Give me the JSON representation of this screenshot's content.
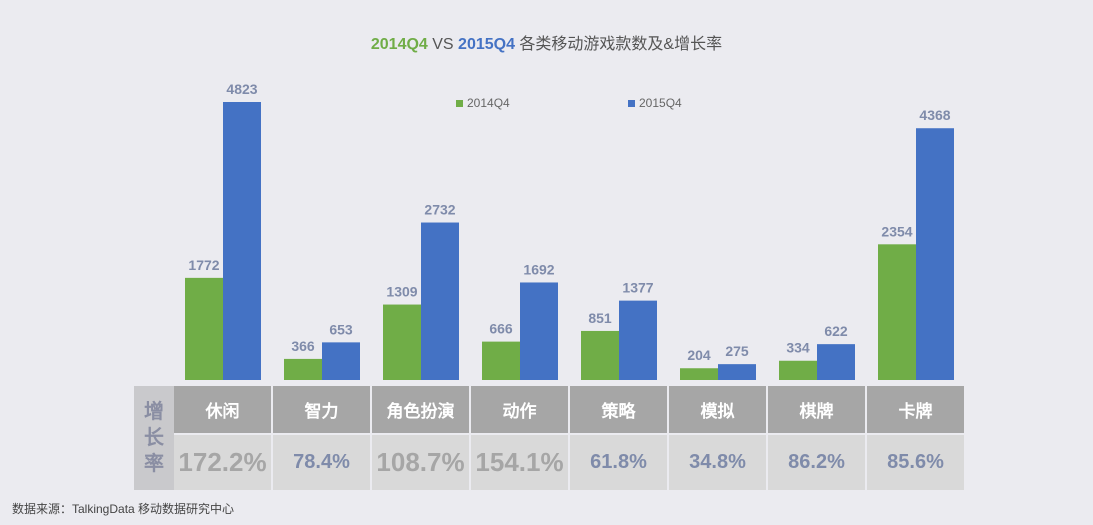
{
  "title": {
    "part_a": "2014Q4",
    "part_vs": " VS ",
    "part_b": "2015Q4",
    "part_rest": " 各类移动游戏款数及&增长率"
  },
  "legend": {
    "a": "2014Q4",
    "b": "2015Q4"
  },
  "colors": {
    "series_a": "#70ad47",
    "series_b": "#4472c4",
    "value_label": "#7f8baa"
  },
  "table": {
    "row_label": [
      "增",
      "长",
      "率"
    ],
    "categories": [
      "休闲",
      "智力",
      "角色扮演",
      "动作",
      "策略",
      "模拟",
      "棋牌",
      "卡牌"
    ],
    "rates": [
      "172.2%",
      "78.4%",
      "108.7%",
      "154.1%",
      "61.8%",
      "34.8%",
      "86.2%",
      "85.6%"
    ],
    "big_rates": [
      true,
      false,
      true,
      true,
      false,
      false,
      false,
      false
    ]
  },
  "source": "数据来源：TalkingData   移动数据研究中心",
  "chart_data": {
    "type": "bar",
    "title": "2014Q4 VS 2015Q4 各类移动游戏款数及&增长率",
    "categories": [
      "休闲",
      "智力",
      "角色扮演",
      "动作",
      "策略",
      "模拟",
      "棋牌",
      "卡牌"
    ],
    "series": [
      {
        "name": "2014Q4",
        "values": [
          1772,
          366,
          1309,
          666,
          851,
          204,
          334,
          2354
        ]
      },
      {
        "name": "2015Q4",
        "values": [
          4823,
          653,
          2732,
          1692,
          1377,
          275,
          622,
          4368
        ]
      }
    ],
    "ylim": [
      0,
      4823
    ],
    "grid": false,
    "legend_position": "top"
  }
}
